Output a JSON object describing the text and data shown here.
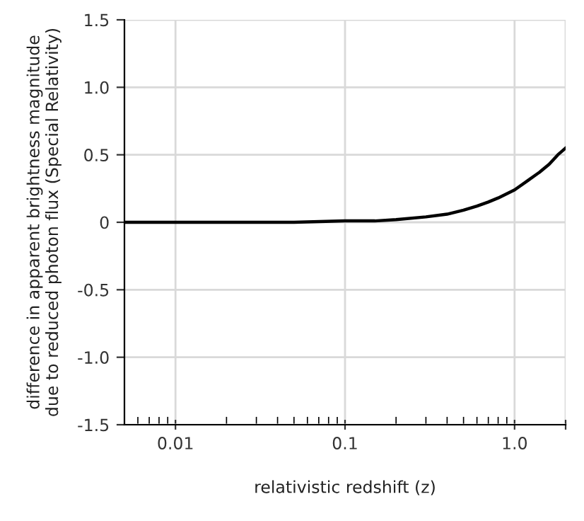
{
  "chart_data": {
    "type": "line",
    "xlabel": "relativistic redshift (z)",
    "ylabel": "difference in apparent brightness magnitude\ndue to reduced photon flux (Special Relativity)",
    "log": "x",
    "grid": true,
    "marker": "none",
    "line_style": "solid",
    "x": [
      0.005,
      0.01,
      0.02,
      0.05,
      0.1,
      0.15,
      0.2,
      0.3,
      0.4,
      0.5,
      0.6,
      0.7,
      0.8,
      1.0,
      1.2,
      1.4,
      1.6,
      1.8,
      2.0
    ],
    "series": [
      {
        "color": "#000000",
        "values": [
          0,
          0,
          0,
          0,
          0.01,
          0.01,
          0.02,
          0.04,
          0.06,
          0.09,
          0.12,
          0.15,
          0.18,
          0.24,
          0.31,
          0.37,
          0.43,
          0.5,
          0.55
        ]
      }
    ],
    "xlim": [
      0.005,
      2
    ],
    "xticks": [
      0.01,
      0.1,
      {
        "value": 1,
        "label": "1.0"
      },
      {
        "value": 2,
        "label": null
      }
    ],
    "ylim": [
      -1.5,
      1.5
    ],
    "yticks": [
      {
        "value": -1.5,
        "label": "-1.5"
      },
      {
        "value": -1,
        "label": "-1.0"
      },
      {
        "value": -0.5,
        "label": "-0.5"
      },
      0,
      0.5,
      {
        "value": 1,
        "label": "1.0"
      },
      1.5
    ]
  }
}
